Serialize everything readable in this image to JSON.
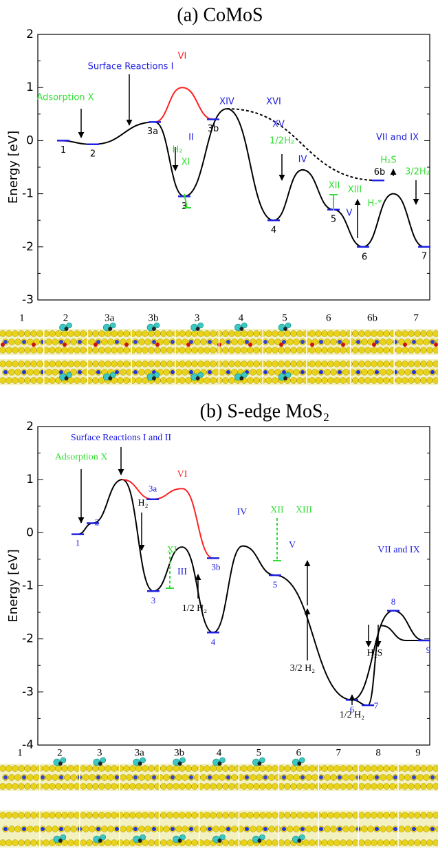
{
  "chart_data": [
    {
      "type": "line",
      "title": "(a) CoMoS",
      "ylabel": "Energy [eV]",
      "ylim": [
        -3,
        2
      ],
      "yticks": [
        -3,
        -2,
        -1,
        0,
        1,
        2
      ],
      "series": [
        {
          "color": "#000000",
          "values": [
            0,
            -0.07,
            0.35,
            -1.05,
            0.6,
            -1.5,
            -0.55,
            -1.3,
            -2.0,
            -1.0,
            -2.0
          ]
        },
        {
          "color": "#ff2020",
          "values": [
            0.35,
            1.0,
            0.4
          ]
        },
        {
          "color": "#000000",
          "dashed": true,
          "values": [
            0.6,
            -0.75
          ]
        }
      ],
      "states": {
        "color": "#2020e0",
        "labels": [
          "1",
          "2",
          "3a",
          "3b",
          "3",
          "4",
          "5",
          "6",
          "6b",
          "7"
        ],
        "values": [
          0,
          -0.07,
          0.35,
          0.4,
          -1.05,
          -1.5,
          -1.3,
          -2.0,
          -0.75,
          -2.0
        ]
      },
      "annotations": [
        {
          "text": "Surface Reactions I",
          "color": "#2020e0"
        },
        {
          "text": "VI",
          "color": "#ff2020"
        },
        {
          "text": "Adsorption X",
          "color": "#33dd33"
        },
        {
          "text": "XIV",
          "color": "#2020e0"
        },
        {
          "text": "XVI",
          "color": "#2020e0"
        },
        {
          "text": "XV",
          "color": "#2020e0"
        },
        {
          "text": "1/2H₂",
          "color": "#33dd33"
        },
        {
          "text": "II",
          "color": "#2020e0"
        },
        {
          "text": "H₂",
          "color": "#33dd33"
        },
        {
          "text": "XI",
          "color": "#33dd33"
        },
        {
          "text": "VII and IX",
          "color": "#2020e0"
        },
        {
          "text": "H₂S",
          "color": "#33dd33"
        },
        {
          "text": "3/2H₂",
          "color": "#33dd33"
        },
        {
          "text": "IV",
          "color": "#2020e0"
        },
        {
          "text": "XII",
          "color": "#33dd33"
        },
        {
          "text": "XIII",
          "color": "#33dd33"
        },
        {
          "text": "V",
          "color": "#2020e0"
        },
        {
          "text": "H-*",
          "color": "#33dd33"
        }
      ],
      "structure_labels": [
        "1",
        "2",
        "3a",
        "3b",
        "3",
        "4",
        "5",
        "6",
        "6b",
        "7"
      ]
    },
    {
      "type": "line",
      "title": "(b) S-edge MoS₂",
      "ylabel": "Energy [eV]",
      "ylim": [
        -4,
        2
      ],
      "yticks": [
        -4,
        -3,
        -2,
        -1,
        0,
        1,
        2
      ],
      "series": [
        {
          "color": "#000000",
          "values": [
            -0.03,
            0.18,
            1.0,
            -1.1,
            -0.27,
            -1.88,
            -0.25,
            -0.8,
            -3.15,
            -3.25,
            -1.75,
            -2.03,
            -2.03
          ]
        },
        {
          "color": "#ff2020",
          "values": [
            1.0,
            0.63,
            0.83,
            -0.48
          ]
        },
        {
          "color": "#000000",
          "values": [
            -3.15,
            -1.47,
            -2.03
          ]
        }
      ],
      "states": {
        "color": "#2020e0",
        "labels": [
          "1",
          "2",
          "3a",
          "3b",
          "3",
          "4",
          "5",
          "6",
          "7",
          "8",
          "9"
        ],
        "values": [
          -0.03,
          0.18,
          0.63,
          -0.48,
          -1.1,
          -1.88,
          -0.8,
          -3.15,
          -3.25,
          -1.47,
          -2.03
        ]
      },
      "annotations": [
        {
          "text": "Surface Reactions I and II",
          "color": "#2020e0"
        },
        {
          "text": "Adsorption X",
          "color": "#33dd33"
        },
        {
          "text": "VI",
          "color": "#ff2020"
        },
        {
          "text": "H₂",
          "color": "#000000"
        },
        {
          "text": "XI",
          "color": "#33dd33"
        },
        {
          "text": "III",
          "color": "#2020e0"
        },
        {
          "text": "1/2 H₂",
          "color": "#000000"
        },
        {
          "text": "IV",
          "color": "#2020e0"
        },
        {
          "text": "XII",
          "color": "#33dd33"
        },
        {
          "text": "XIII",
          "color": "#33dd33"
        },
        {
          "text": "V",
          "color": "#2020e0"
        },
        {
          "text": "VII and IX",
          "color": "#2020e0"
        },
        {
          "text": "3/2 H₂",
          "color": "#000000"
        },
        {
          "text": "1/2 H₂",
          "color": "#000000"
        },
        {
          "text": "H₂S",
          "color": "#000000"
        }
      ],
      "structure_labels": [
        "1",
        "2",
        "3",
        "3a",
        "3b",
        "4",
        "5",
        "6",
        "7",
        "8",
        "9"
      ]
    }
  ]
}
